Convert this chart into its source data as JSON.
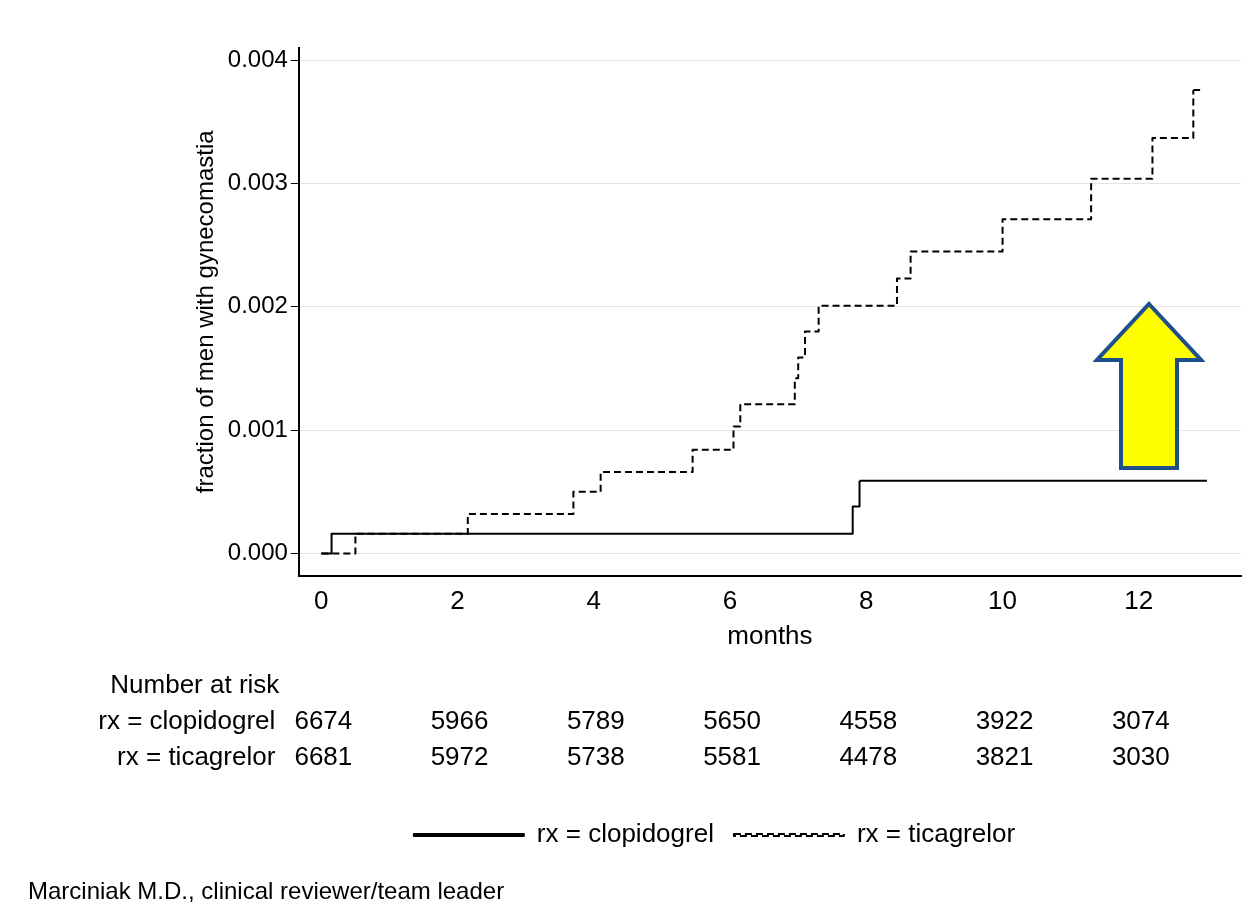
{
  "chart_data": {
    "type": "step",
    "xlabel": "months",
    "ylabel": "fraction of men with gynecomastia",
    "xlim": [
      -0.33,
      13.5
    ],
    "xticks": [
      0,
      2,
      4,
      6,
      8,
      10,
      12
    ],
    "ylim": [
      -0.00018,
      0.0041
    ],
    "yticks": [
      {
        "value": 0,
        "label": "0.000"
      },
      {
        "value": 0.001,
        "label": "0.001"
      },
      {
        "value": 0.002,
        "label": "0.002"
      },
      {
        "value": 0.003,
        "label": "0.003"
      },
      {
        "value": 0.004,
        "label": "0.004"
      }
    ],
    "grid": "y",
    "legend": "bottom",
    "marker": "none",
    "series": [
      {
        "name": "rx = clopidogrel",
        "color": "#000000",
        "line_style": "solid",
        "x": [
          0,
          0.15,
          7.8,
          7.9,
          13
        ],
        "values": [
          0,
          0.00016,
          0.00038,
          0.00059,
          0.00059
        ]
      },
      {
        "name": "rx = ticagrelor",
        "color": "#000000",
        "line_style": "dashed",
        "x": [
          0,
          0.5,
          2.15,
          3.7,
          4.1,
          5.45,
          6.05,
          6.15,
          6.95,
          7.0,
          7.1,
          7.3,
          8.45,
          8.65,
          10.0,
          11.3,
          12.2,
          12.8,
          12.9
        ],
        "values": [
          0,
          0.00016,
          0.00032,
          0.0005,
          0.00066,
          0.00084,
          0.00103,
          0.00121,
          0.00142,
          0.00159,
          0.0018,
          0.00201,
          0.00223,
          0.00245,
          0.00271,
          0.00304,
          0.00337,
          0.00376,
          0.00376
        ]
      }
    ],
    "annotations": [
      "Number at risk",
      "rx = clopidogrel",
      "6674",
      "5966",
      "5789",
      "5650",
      "4558",
      "3922",
      "3074",
      "rx = ticagrelor",
      "6681",
      "5972",
      "5738",
      "5581",
      "4478",
      "3821",
      "3030",
      "Marciniak M.D., clinical reviewer/team leader"
    ]
  }
}
